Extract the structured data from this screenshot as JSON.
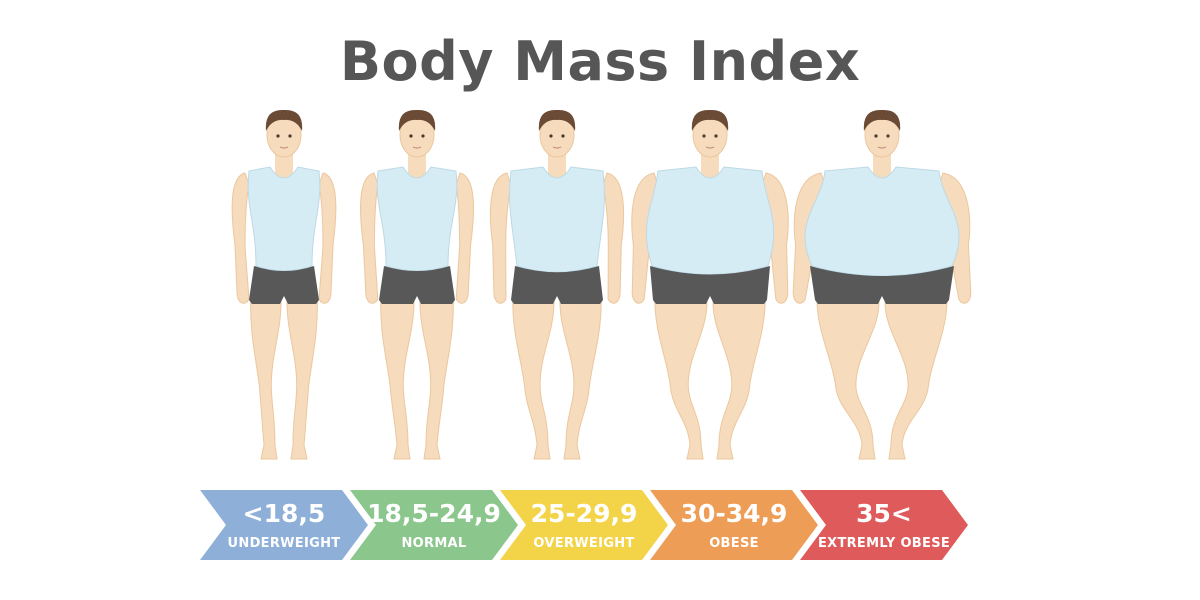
{
  "title": "Body Mass Index",
  "colors": {
    "skin": "#f6dcbd",
    "skin_shade": "#ebc79e",
    "hair": "#6b4b36",
    "tank_top": "#d6ecf4",
    "shorts": "#585858",
    "title": "#565656"
  },
  "categories": [
    {
      "value": "<18,5",
      "label": "UNDERWEIGHT",
      "color": "#8eafd8",
      "build": 0
    },
    {
      "value": "18,5-24,9",
      "label": "NORMAL",
      "color": "#8bc68c",
      "build": 1
    },
    {
      "value": "25-29,9",
      "label": "OVERWEIGHT",
      "color": "#f3d448",
      "build": 2
    },
    {
      "value": "30-34,9",
      "label": "OBESE",
      "color": "#ee9d57",
      "build": 3
    },
    {
      "value": "35<",
      "label": "EXTREMLY OBESE",
      "color": "#df5a5a",
      "build": 4
    }
  ]
}
